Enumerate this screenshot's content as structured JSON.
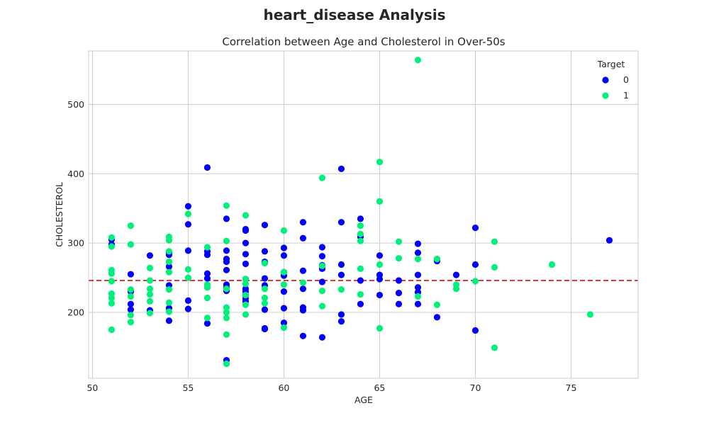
{
  "suptitle": "heart_disease Analysis",
  "chart_data": {
    "type": "scatter",
    "title": "Correlation between Age and Cholesterol in Over-50s",
    "xlabel": "AGE",
    "ylabel": "CHOLESTEROL",
    "xlim": [
      49.8,
      78.5
    ],
    "ylim": [
      105,
      577
    ],
    "xticks": [
      50,
      55,
      60,
      65,
      70,
      75
    ],
    "yticks": [
      200,
      300,
      400,
      500
    ],
    "grid": true,
    "legend": {
      "title": "Target",
      "placement": "top-right",
      "labels": [
        "0",
        "1"
      ]
    },
    "reference_line": {
      "y": 246,
      "color": "#e31a1c",
      "style": "dashed"
    },
    "series": [
      {
        "name": "0",
        "color": "#0000ff",
        "points": [
          [
            51,
            298
          ],
          [
            51,
            305
          ],
          [
            52,
            255
          ],
          [
            52,
            230
          ],
          [
            52,
            212
          ],
          [
            52,
            204
          ],
          [
            53,
            282
          ],
          [
            53,
            203
          ],
          [
            54,
            286
          ],
          [
            54,
            283
          ],
          [
            54,
            266
          ],
          [
            54,
            239
          ],
          [
            54,
            206
          ],
          [
            54,
            188
          ],
          [
            55,
            353
          ],
          [
            55,
            327
          ],
          [
            55,
            289
          ],
          [
            55,
            217
          ],
          [
            55,
            205
          ],
          [
            56,
            409
          ],
          [
            56,
            288
          ],
          [
            56,
            283
          ],
          [
            56,
            256
          ],
          [
            56,
            249
          ],
          [
            56,
            184
          ],
          [
            57,
            335
          ],
          [
            57,
            289
          ],
          [
            57,
            277
          ],
          [
            57,
            273
          ],
          [
            57,
            261
          ],
          [
            57,
            240
          ],
          [
            57,
            236
          ],
          [
            57,
            231
          ],
          [
            57,
            131
          ],
          [
            58,
            320
          ],
          [
            58,
            318
          ],
          [
            58,
            300
          ],
          [
            58,
            284
          ],
          [
            58,
            270
          ],
          [
            58,
            248
          ],
          [
            58,
            234
          ],
          [
            58,
            230
          ],
          [
            58,
            225
          ],
          [
            58,
            220
          ],
          [
            58,
            216
          ],
          [
            59,
            326
          ],
          [
            59,
            288
          ],
          [
            59,
            273
          ],
          [
            59,
            249
          ],
          [
            59,
            239
          ],
          [
            59,
            204
          ],
          [
            59,
            177
          ],
          [
            59,
            176
          ],
          [
            60,
            293
          ],
          [
            60,
            282
          ],
          [
            60,
            258
          ],
          [
            60,
            253
          ],
          [
            60,
            230
          ],
          [
            60,
            206
          ],
          [
            60,
            185
          ],
          [
            61,
            330
          ],
          [
            61,
            307
          ],
          [
            61,
            260
          ],
          [
            61,
            234
          ],
          [
            61,
            207
          ],
          [
            61,
            203
          ],
          [
            61,
            166
          ],
          [
            62,
            294
          ],
          [
            62,
            281
          ],
          [
            62,
            268
          ],
          [
            62,
            263
          ],
          [
            62,
            244
          ],
          [
            62,
            164
          ],
          [
            63,
            407
          ],
          [
            63,
            330
          ],
          [
            63,
            269
          ],
          [
            63,
            254
          ],
          [
            63,
            197
          ],
          [
            63,
            187
          ],
          [
            64,
            335
          ],
          [
            64,
            309
          ],
          [
            64,
            246
          ],
          [
            64,
            212
          ],
          [
            65,
            282
          ],
          [
            65,
            254
          ],
          [
            65,
            248
          ],
          [
            65,
            225
          ],
          [
            66,
            246
          ],
          [
            66,
            228
          ],
          [
            66,
            212
          ],
          [
            67,
            299
          ],
          [
            67,
            286
          ],
          [
            67,
            254
          ],
          [
            67,
            236
          ],
          [
            67,
            229
          ],
          [
            67,
            212
          ],
          [
            68,
            274
          ],
          [
            68,
            193
          ],
          [
            69,
            254
          ],
          [
            70,
            322
          ],
          [
            70,
            269
          ],
          [
            70,
            174
          ],
          [
            77,
            304
          ]
        ]
      },
      {
        "name": "1",
        "color": "#00f07a",
        "points": [
          [
            51,
            308
          ],
          [
            51,
            295
          ],
          [
            51,
            261
          ],
          [
            51,
            256
          ],
          [
            51,
            245
          ],
          [
            51,
            227
          ],
          [
            51,
            221
          ],
          [
            51,
            213
          ],
          [
            51,
            175
          ],
          [
            52,
            325
          ],
          [
            52,
            298
          ],
          [
            52,
            233
          ],
          [
            52,
            223
          ],
          [
            52,
            196
          ],
          [
            52,
            186
          ],
          [
            53,
            264
          ],
          [
            53,
            246
          ],
          [
            53,
            234
          ],
          [
            53,
            226
          ],
          [
            53,
            216
          ],
          [
            53,
            199
          ],
          [
            54,
            309
          ],
          [
            54,
            304
          ],
          [
            54,
            288
          ],
          [
            54,
            273
          ],
          [
            54,
            258
          ],
          [
            54,
            233
          ],
          [
            54,
            214
          ],
          [
            54,
            201
          ],
          [
            55,
            342
          ],
          [
            55,
            262
          ],
          [
            55,
            250
          ],
          [
            56,
            294
          ],
          [
            56,
            240
          ],
          [
            56,
            236
          ],
          [
            56,
            221
          ],
          [
            56,
            192
          ],
          [
            57,
            354
          ],
          [
            57,
            303
          ],
          [
            57,
            234
          ],
          [
            57,
            207
          ],
          [
            57,
            200
          ],
          [
            57,
            192
          ],
          [
            57,
            168
          ],
          [
            57,
            126
          ],
          [
            58,
            340
          ],
          [
            58,
            248
          ],
          [
            58,
            241
          ],
          [
            58,
            225
          ],
          [
            58,
            211
          ],
          [
            58,
            197
          ],
          [
            59,
            271
          ],
          [
            59,
            234
          ],
          [
            59,
            221
          ],
          [
            59,
            213
          ],
          [
            60,
            318
          ],
          [
            60,
            258
          ],
          [
            60,
            240
          ],
          [
            60,
            178
          ],
          [
            61,
            243
          ],
          [
            62,
            394
          ],
          [
            62,
            267
          ],
          [
            62,
            231
          ],
          [
            62,
            209
          ],
          [
            63,
            233
          ],
          [
            64,
            325
          ],
          [
            64,
            313
          ],
          [
            64,
            303
          ],
          [
            64,
            263
          ],
          [
            64,
            226
          ],
          [
            65,
            417
          ],
          [
            65,
            360
          ],
          [
            65,
            269
          ],
          [
            65,
            177
          ],
          [
            66,
            302
          ],
          [
            66,
            278
          ],
          [
            67,
            564
          ],
          [
            67,
            277
          ],
          [
            67,
            223
          ],
          [
            68,
            277
          ],
          [
            68,
            211
          ],
          [
            69,
            240
          ],
          [
            69,
            234
          ],
          [
            70,
            245
          ],
          [
            71,
            302
          ],
          [
            71,
            265
          ],
          [
            71,
            149
          ],
          [
            74,
            269
          ],
          [
            76,
            197
          ]
        ]
      }
    ]
  }
}
